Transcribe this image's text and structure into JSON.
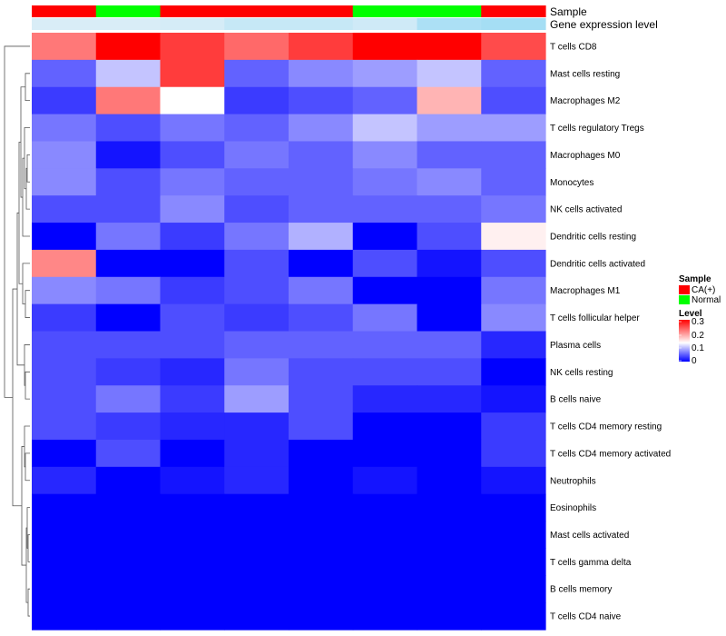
{
  "chart_data": {
    "type": "heatmap",
    "annotation_labels": [
      "Sample",
      "Gene expression level"
    ],
    "column_samples": [
      "CA(+)",
      "Normal",
      "CA(+)",
      "CA(+)",
      "CA(+)",
      "Normal",
      "Normal",
      "CA(+)"
    ],
    "column_expression": [
      0.09,
      0.09,
      0.12,
      0.22,
      0.22,
      0.16,
      0.4,
      0.45
    ],
    "rows": [
      "T cells CD8",
      "Mast cells resting",
      "Macrophages M2",
      "T cells regulatory  Tregs",
      "Macrophages M0",
      "Monocytes",
      "NK cells activated",
      "Dendritic cells resting",
      "Dendritic cells activated",
      "Macrophages M1",
      "T cells follicular helper",
      "Plasma cells",
      "NK cells resting",
      "B cells naive",
      "T cells CD4 memory resting",
      "T cells CD4 memory activated",
      "Neutrophils",
      "Eosinophils",
      "Mast cells activated",
      "T cells gamma delta",
      "B cells memory",
      "T cells CD4 naive"
    ],
    "values": [
      [
        0.22,
        0.3,
        0.26,
        0.23,
        0.26,
        0.3,
        0.3,
        0.25
      ],
      [
        0.05,
        0.1,
        0.26,
        0.05,
        0.07,
        0.08,
        0.1,
        0.05
      ],
      [
        0.03,
        0.22,
        0.13,
        0.03,
        0.04,
        0.05,
        0.18,
        0.04
      ],
      [
        0.06,
        0.04,
        0.06,
        0.05,
        0.07,
        0.1,
        0.08,
        0.08
      ],
      [
        0.07,
        0.01,
        0.04,
        0.06,
        0.05,
        0.07,
        0.05,
        0.05
      ],
      [
        0.07,
        0.04,
        0.06,
        0.05,
        0.05,
        0.06,
        0.07,
        0.05
      ],
      [
        0.04,
        0.04,
        0.07,
        0.04,
        0.05,
        0.05,
        0.05,
        0.06
      ],
      [
        0.0,
        0.06,
        0.03,
        0.06,
        0.09,
        0.0,
        0.04,
        0.14
      ],
      [
        0.21,
        0.0,
        0.0,
        0.04,
        0.0,
        0.04,
        0.01,
        0.04
      ],
      [
        0.07,
        0.06,
        0.03,
        0.04,
        0.06,
        0.0,
        0.0,
        0.06
      ],
      [
        0.03,
        0.0,
        0.04,
        0.03,
        0.04,
        0.06,
        0.0,
        0.07
      ],
      [
        0.04,
        0.04,
        0.04,
        0.05,
        0.05,
        0.05,
        0.05,
        0.02
      ],
      [
        0.04,
        0.03,
        0.02,
        0.06,
        0.04,
        0.04,
        0.04,
        0.0
      ],
      [
        0.04,
        0.06,
        0.03,
        0.08,
        0.04,
        0.02,
        0.02,
        0.01
      ],
      [
        0.04,
        0.03,
        0.02,
        0.02,
        0.04,
        0.0,
        0.0,
        0.03
      ],
      [
        0.0,
        0.04,
        0.0,
        0.02,
        0.0,
        0.0,
        0.0,
        0.03
      ],
      [
        0.02,
        0.0,
        0.01,
        0.02,
        0.0,
        0.01,
        0.0,
        0.01
      ],
      [
        0.0,
        0.0,
        0.0,
        0.0,
        0.0,
        0.0,
        0.0,
        0.0
      ],
      [
        0.0,
        0.0,
        0.0,
        0.0,
        0.0,
        0.0,
        0.0,
        0.0
      ],
      [
        0.0,
        0.0,
        0.0,
        0.0,
        0.0,
        0.0,
        0.0,
        0.0
      ],
      [
        0.0,
        0.0,
        0.0,
        0.0,
        0.0,
        0.0,
        0.0,
        0.0
      ],
      [
        0.0,
        0.0,
        0.0,
        0.0,
        0.0,
        0.0,
        0.0,
        0.0
      ]
    ],
    "color_scale": {
      "low": "#0000FF",
      "mid": "#FFFFFF",
      "high": "#FF0000",
      "domain": [
        0,
        0.3
      ],
      "mid_value": 0.13
    },
    "expression_scale": {
      "low": "#E6F1F8",
      "high": "#55C6F0"
    },
    "legend": {
      "position": "right",
      "sample_title": "Sample",
      "sample_entries": [
        {
          "label": "CA(+)",
          "color": "#FF0000"
        },
        {
          "label": "Normal",
          "color": "#00FF00"
        }
      ],
      "level_title": "Level",
      "level_ticks": [
        "0.3",
        "0.2",
        "0.1",
        "0"
      ]
    },
    "row_dendrogram": true
  }
}
